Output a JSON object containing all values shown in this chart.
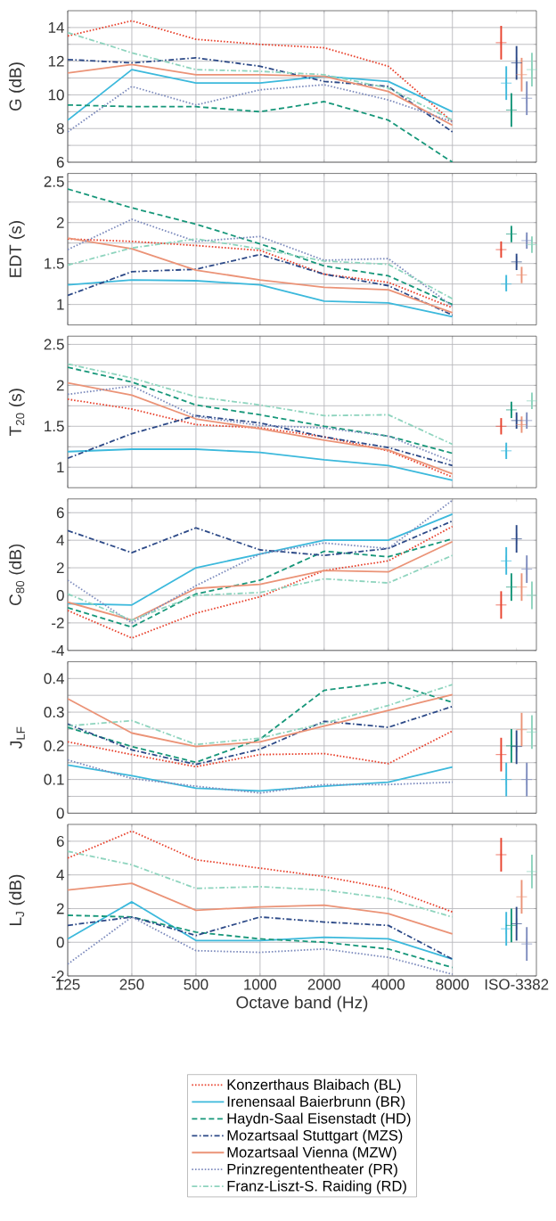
{
  "chart_data": [
    {
      "type": "line",
      "ylabel": "G (dB)",
      "categories": [
        "125",
        "250",
        "500",
        "1000",
        "2000",
        "4000",
        "8000",
        "ISO-3382"
      ],
      "ylim": [
        6,
        15
      ],
      "yticks": [
        6,
        {
          "value": 7,
          "label": null
        },
        8,
        {
          "value": 9,
          "label": null
        },
        10,
        {
          "value": 11,
          "label": null
        },
        12,
        {
          "value": 13,
          "label": null
        },
        14
      ],
      "grid": true,
      "tick_labels": "y",
      "series": [
        {
          "color": "#e8412c",
          "line_style": "dotted",
          "values": [
            13.5,
            14.4,
            13.3,
            13.0,
            12.8,
            11.7,
            8.4,
            null
          ]
        },
        {
          "color": "#3cb9dc",
          "line_style": "solid",
          "values": [
            8.5,
            11.5,
            10.7,
            10.7,
            11.1,
            10.8,
            9.0,
            null
          ]
        },
        {
          "color": "#17977a",
          "line_style": "dashed",
          "values": [
            9.4,
            9.3,
            9.3,
            9.0,
            9.6,
            8.5,
            6.0,
            null
          ]
        },
        {
          "color": "#2c4987",
          "line_style": "dashdot",
          "values": [
            12.1,
            11.9,
            12.2,
            11.7,
            10.8,
            10.5,
            7.8,
            null
          ]
        },
        {
          "color": "#eb9377",
          "line_style": "solid",
          "values": [
            11.3,
            11.8,
            11.2,
            11.2,
            11.1,
            10.2,
            8.2,
            null
          ]
        },
        {
          "color": "#7d8bbd",
          "line_style": "dotted",
          "values": [
            7.8,
            10.5,
            9.4,
            10.3,
            10.6,
            9.7,
            8.4,
            null
          ]
        },
        {
          "color": "#8ed4be",
          "line_style": "dashdot",
          "values": [
            13.7,
            12.5,
            11.5,
            11.4,
            11.2,
            10.4,
            8.5,
            null
          ]
        },
        {
          "type": "scatter",
          "color": "#e8412c",
          "marker": "cross",
          "x": [
            "ISO-3382"
          ],
          "values": [
            13.1
          ],
          "errors": [
            [
              12.1,
              14.1
            ]
          ]
        },
        {
          "type": "scatter",
          "color": "#3cb9dc",
          "marker": "cross",
          "x": [
            "ISO-3382"
          ],
          "values": [
            10.7
          ],
          "errors": [
            [
              9.7,
              11.7
            ]
          ]
        },
        {
          "type": "scatter",
          "color": "#17977a",
          "marker": "cross",
          "x": [
            "ISO-3382"
          ],
          "values": [
            9.1
          ],
          "errors": [
            [
              8.1,
              10.1
            ]
          ]
        },
        {
          "type": "scatter",
          "color": "#2c4987",
          "marker": "cross",
          "x": [
            "ISO-3382"
          ],
          "values": [
            11.9
          ],
          "errors": [
            [
              10.9,
              12.9
            ]
          ]
        },
        {
          "type": "scatter",
          "color": "#eb9377",
          "marker": "cross",
          "x": [
            "ISO-3382"
          ],
          "values": [
            11.2
          ],
          "errors": [
            [
              10.2,
              12.2
            ]
          ]
        },
        {
          "type": "scatter",
          "color": "#7d8bbd",
          "marker": "cross",
          "x": [
            "ISO-3382"
          ],
          "values": [
            9.8
          ],
          "errors": [
            [
              8.8,
              10.8
            ]
          ]
        },
        {
          "type": "scatter",
          "color": "#8ed4be",
          "marker": "cross",
          "x": [
            "ISO-3382"
          ],
          "values": [
            11.5
          ],
          "errors": [
            [
              10.5,
              12.5
            ]
          ]
        }
      ]
    },
    {
      "type": "line",
      "ylabel": "EDT (s)",
      "categories": [
        "125",
        "250",
        "500",
        "1000",
        "2000",
        "4000",
        "8000",
        "ISO-3382"
      ],
      "ylim": [
        0.75,
        2.6
      ],
      "yticks": [
        1,
        {
          "value": 1.25,
          "label": null
        },
        1.5,
        {
          "value": 1.75,
          "label": null
        },
        2,
        {
          "value": 2.25,
          "label": null
        },
        2.5
      ],
      "grid": true,
      "tick_labels": "y",
      "series": [
        {
          "color": "#e8412c",
          "line_style": "dotted",
          "values": [
            1.8,
            1.77,
            1.72,
            1.66,
            1.37,
            1.27,
            0.96,
            null
          ]
        },
        {
          "color": "#3cb9dc",
          "line_style": "solid",
          "values": [
            1.24,
            1.3,
            1.29,
            1.24,
            1.04,
            1.02,
            0.85,
            null
          ]
        },
        {
          "color": "#17977a",
          "line_style": "dashed",
          "values": [
            2.41,
            2.18,
            1.98,
            1.74,
            1.47,
            1.35,
            1.0,
            null
          ]
        },
        {
          "color": "#2c4987",
          "line_style": "dashdot",
          "values": [
            1.11,
            1.4,
            1.43,
            1.61,
            1.37,
            1.23,
            0.87,
            null
          ]
        },
        {
          "color": "#eb9377",
          "line_style": "solid",
          "values": [
            1.81,
            1.68,
            1.42,
            1.3,
            1.21,
            1.18,
            0.9,
            null
          ]
        },
        {
          "color": "#7d8bbd",
          "line_style": "dotted",
          "values": [
            1.67,
            2.04,
            1.77,
            1.83,
            1.54,
            1.56,
            0.98,
            null
          ]
        },
        {
          "color": "#8ed4be",
          "line_style": "dashdot",
          "values": [
            1.48,
            1.69,
            1.8,
            1.68,
            1.53,
            1.49,
            1.07,
            null
          ]
        },
        {
          "type": "scatter",
          "color": "#e8412c",
          "marker": "cross",
          "x": [
            "ISO-3382"
          ],
          "values": [
            1.67
          ],
          "errors": [
            [
              1.57,
              1.77
            ]
          ]
        },
        {
          "type": "scatter",
          "color": "#3cb9dc",
          "marker": "cross",
          "x": [
            "ISO-3382"
          ],
          "values": [
            1.25
          ],
          "errors": [
            [
              1.16,
              1.36
            ]
          ]
        },
        {
          "type": "scatter",
          "color": "#17977a",
          "marker": "cross",
          "x": [
            "ISO-3382"
          ],
          "values": [
            1.86
          ],
          "errors": [
            [
              1.76,
              1.96
            ]
          ]
        },
        {
          "type": "scatter",
          "color": "#2c4987",
          "marker": "cross",
          "x": [
            "ISO-3382"
          ],
          "values": [
            1.52
          ],
          "errors": [
            [
              1.42,
              1.62
            ]
          ]
        },
        {
          "type": "scatter",
          "color": "#eb9377",
          "marker": "cross",
          "x": [
            "ISO-3382"
          ],
          "values": [
            1.36
          ],
          "errors": [
            [
              1.26,
              1.46
            ]
          ]
        },
        {
          "type": "scatter",
          "color": "#7d8bbd",
          "marker": "cross",
          "x": [
            "ISO-3382"
          ],
          "values": [
            1.78
          ],
          "errors": [
            [
              1.68,
              1.88
            ]
          ]
        },
        {
          "type": "scatter",
          "color": "#8ed4be",
          "marker": "cross",
          "x": [
            "ISO-3382"
          ],
          "values": [
            1.73
          ],
          "errors": [
            [
              1.63,
              1.83
            ]
          ]
        }
      ]
    },
    {
      "type": "line",
      "ylabel": "T$_{20}$ (s)",
      "categories": [
        "125",
        "250",
        "500",
        "1000",
        "2000",
        "4000",
        "8000",
        "ISO-3382"
      ],
      "ylim": [
        0.75,
        2.6
      ],
      "yticks": [
        1,
        {
          "value": 1.25,
          "label": null
        },
        1.5,
        {
          "value": 1.75,
          "label": null
        },
        2,
        {
          "value": 2.25,
          "label": null
        },
        2.5
      ],
      "grid": true,
      "tick_labels": "y",
      "series": [
        {
          "color": "#e8412c",
          "line_style": "dotted",
          "values": [
            1.83,
            1.71,
            1.52,
            1.48,
            1.37,
            1.2,
            0.88,
            null
          ]
        },
        {
          "color": "#3cb9dc",
          "line_style": "solid",
          "values": [
            1.19,
            1.22,
            1.22,
            1.18,
            1.09,
            1.02,
            0.84,
            null
          ]
        },
        {
          "color": "#17977a",
          "line_style": "dashed",
          "values": [
            2.22,
            2.04,
            1.76,
            1.64,
            1.5,
            1.38,
            1.17,
            null
          ]
        },
        {
          "color": "#2c4987",
          "line_style": "dashdot",
          "values": [
            1.11,
            1.41,
            1.63,
            1.54,
            1.37,
            1.24,
            1.02,
            null
          ]
        },
        {
          "color": "#eb9377",
          "line_style": "solid",
          "values": [
            2.03,
            1.88,
            1.59,
            1.47,
            1.33,
            1.21,
            0.92,
            null
          ]
        },
        {
          "color": "#7d8bbd",
          "line_style": "dotted",
          "values": [
            1.89,
            1.99,
            1.62,
            1.51,
            1.48,
            1.38,
            1.07,
            null
          ]
        },
        {
          "color": "#8ed4be",
          "line_style": "dashdot",
          "values": [
            2.26,
            2.09,
            1.86,
            1.76,
            1.63,
            1.64,
            1.28,
            null
          ]
        },
        {
          "type": "scatter",
          "color": "#e8412c",
          "marker": "cross",
          "x": [
            "ISO-3382"
          ],
          "values": [
            1.5
          ],
          "errors": [
            [
              1.4,
              1.6
            ]
          ]
        },
        {
          "type": "scatter",
          "color": "#3cb9dc",
          "marker": "cross",
          "x": [
            "ISO-3382"
          ],
          "values": [
            1.2
          ],
          "errors": [
            [
              1.1,
              1.3
            ]
          ]
        },
        {
          "type": "scatter",
          "color": "#17977a",
          "marker": "cross",
          "x": [
            "ISO-3382"
          ],
          "values": [
            1.7
          ],
          "errors": [
            [
              1.6,
              1.8
            ]
          ]
        },
        {
          "type": "scatter",
          "color": "#2c4987",
          "marker": "cross",
          "x": [
            "ISO-3382"
          ],
          "values": [
            1.57
          ],
          "errors": [
            [
              1.47,
              1.67
            ]
          ]
        },
        {
          "type": "scatter",
          "color": "#eb9377",
          "marker": "cross",
          "x": [
            "ISO-3382"
          ],
          "values": [
            1.52
          ],
          "errors": [
            [
              1.42,
              1.62
            ]
          ]
        },
        {
          "type": "scatter",
          "color": "#7d8bbd",
          "marker": "cross",
          "x": [
            "ISO-3382"
          ],
          "values": [
            1.57
          ],
          "errors": [
            [
              1.47,
              1.67
            ]
          ]
        },
        {
          "type": "scatter",
          "color": "#8ed4be",
          "marker": "cross",
          "x": [
            "ISO-3382"
          ],
          "values": [
            1.81
          ],
          "errors": [
            [
              1.71,
              1.91
            ]
          ]
        }
      ]
    },
    {
      "type": "line",
      "ylabel": "C$_{80}$ (dB)",
      "categories": [
        "125",
        "250",
        "500",
        "1000",
        "2000",
        "4000",
        "8000",
        "ISO-3382"
      ],
      "ylim": [
        -4,
        7
      ],
      "yticks": [
        -4,
        -2,
        0,
        2,
        4,
        6
      ],
      "grid": true,
      "tick_labels": "y",
      "series": [
        {
          "color": "#e8412c",
          "line_style": "dotted",
          "values": [
            -1.1,
            -3.1,
            -1.3,
            -0.1,
            1.8,
            2.5,
            5.0,
            null
          ]
        },
        {
          "color": "#3cb9dc",
          "line_style": "solid",
          "values": [
            -0.6,
            -0.7,
            2.0,
            3.0,
            4.0,
            4.0,
            5.9,
            null
          ]
        },
        {
          "color": "#17977a",
          "line_style": "dashed",
          "values": [
            -0.9,
            -2.3,
            0.1,
            1.1,
            3.2,
            2.8,
            4.1,
            null
          ]
        },
        {
          "color": "#2c4987",
          "line_style": "dashdot",
          "values": [
            4.7,
            3.1,
            4.9,
            3.3,
            2.9,
            3.4,
            5.4,
            null
          ]
        },
        {
          "color": "#eb9377",
          "line_style": "solid",
          "values": [
            -0.5,
            -1.8,
            0.5,
            0.8,
            1.8,
            1.7,
            3.9,
            null
          ]
        },
        {
          "color": "#7d8bbd",
          "line_style": "dotted",
          "values": [
            1.1,
            -2.0,
            0.7,
            3.0,
            3.8,
            3.4,
            6.9,
            null
          ]
        },
        {
          "color": "#8ed4be",
          "line_style": "dashdot",
          "values": [
            0.1,
            -1.8,
            0.0,
            0.2,
            1.2,
            0.9,
            2.9,
            null
          ]
        },
        {
          "type": "scatter",
          "color": "#e8412c",
          "marker": "cross",
          "x": [
            "ISO-3382"
          ],
          "values": [
            -0.7
          ],
          "errors": [
            [
              -1.7,
              0.3
            ]
          ]
        },
        {
          "type": "scatter",
          "color": "#3cb9dc",
          "marker": "cross",
          "x": [
            "ISO-3382"
          ],
          "values": [
            2.5
          ],
          "errors": [
            [
              1.5,
              3.5
            ]
          ]
        },
        {
          "type": "scatter",
          "color": "#17977a",
          "marker": "cross",
          "x": [
            "ISO-3382"
          ],
          "values": [
            0.6
          ],
          "errors": [
            [
              -0.4,
              1.6
            ]
          ]
        },
        {
          "type": "scatter",
          "color": "#2c4987",
          "marker": "cross",
          "x": [
            "ISO-3382"
          ],
          "values": [
            4.1
          ],
          "errors": [
            [
              3.1,
              5.1
            ]
          ]
        },
        {
          "type": "scatter",
          "color": "#eb9377",
          "marker": "cross",
          "x": [
            "ISO-3382"
          ],
          "values": [
            0.6
          ],
          "errors": [
            [
              -0.4,
              1.6
            ]
          ]
        },
        {
          "type": "scatter",
          "color": "#7d8bbd",
          "marker": "cross",
          "x": [
            "ISO-3382"
          ],
          "values": [
            1.9
          ],
          "errors": [
            [
              0.9,
              2.9
            ]
          ]
        },
        {
          "type": "scatter",
          "color": "#8ed4be",
          "marker": "cross",
          "x": [
            "ISO-3382"
          ],
          "values": [
            0.0
          ],
          "errors": [
            [
              -1.0,
              1.0
            ]
          ]
        }
      ]
    },
    {
      "type": "line",
      "ylabel": "J$_{LF}$",
      "categories": [
        "125",
        "250",
        "500",
        "1000",
        "2000",
        "4000",
        "8000",
        "ISO-3382"
      ],
      "ylim": [
        0,
        0.45
      ],
      "yticks": [
        0,
        {
          "value": 0.05,
          "label": null
        },
        0.1,
        {
          "value": 0.15,
          "label": null
        },
        0.2,
        {
          "value": 0.25,
          "label": null
        },
        0.3,
        {
          "value": 0.35,
          "label": null
        },
        0.4
      ],
      "grid": true,
      "tick_labels": "y",
      "series": [
        {
          "color": "#e8412c",
          "line_style": "dotted",
          "values": [
            0.212,
            0.174,
            0.138,
            0.174,
            0.177,
            0.147,
            0.244,
            null
          ]
        },
        {
          "color": "#3cb9dc",
          "line_style": "solid",
          "values": [
            0.143,
            0.111,
            0.074,
            0.066,
            0.08,
            0.092,
            0.137,
            null
          ]
        },
        {
          "color": "#17977a",
          "line_style": "dashed",
          "values": [
            0.255,
            0.198,
            0.151,
            0.22,
            0.365,
            0.389,
            0.329,
            null
          ]
        },
        {
          "color": "#2c4987",
          "line_style": "dashdot",
          "values": [
            0.265,
            0.188,
            0.145,
            0.19,
            0.273,
            0.255,
            0.317,
            null
          ]
        },
        {
          "color": "#eb9377",
          "line_style": "solid",
          "values": [
            0.34,
            0.238,
            0.198,
            0.212,
            0.259,
            0.305,
            0.352,
            null
          ]
        },
        {
          "color": "#7d8bbd",
          "line_style": "dotted",
          "values": [
            0.158,
            0.103,
            0.08,
            0.06,
            0.085,
            0.085,
            0.092,
            null
          ]
        },
        {
          "color": "#8ed4be",
          "line_style": "dashdot",
          "values": [
            0.259,
            0.275,
            0.204,
            0.223,
            0.267,
            0.32,
            0.382,
            null
          ]
        },
        {
          "type": "scatter",
          "color": "#e8412c",
          "marker": "cross",
          "x": [
            "ISO-3382"
          ],
          "values": [
            0.174
          ],
          "errors": [
            [
              0.124,
              0.224
            ]
          ]
        },
        {
          "type": "scatter",
          "color": "#3cb9dc",
          "marker": "cross",
          "x": [
            "ISO-3382"
          ],
          "values": [
            0.1
          ],
          "errors": [
            [
              0.05,
              0.15
            ]
          ]
        },
        {
          "type": "scatter",
          "color": "#17977a",
          "marker": "cross",
          "x": [
            "ISO-3382"
          ],
          "values": [
            0.2
          ],
          "errors": [
            [
              0.15,
              0.25
            ]
          ]
        },
        {
          "type": "scatter",
          "color": "#2c4987",
          "marker": "cross",
          "x": [
            "ISO-3382"
          ],
          "values": [
            0.198
          ],
          "errors": [
            [
              0.146,
              0.246
            ]
          ]
        },
        {
          "type": "scatter",
          "color": "#eb9377",
          "marker": "cross",
          "x": [
            "ISO-3382"
          ],
          "values": [
            0.248
          ],
          "errors": [
            [
              0.198,
              0.298
            ]
          ]
        },
        {
          "type": "scatter",
          "color": "#7d8bbd",
          "marker": "cross",
          "x": [
            "ISO-3382"
          ],
          "values": [
            0.1
          ],
          "errors": [
            [
              0.05,
              0.15
            ]
          ]
        },
        {
          "type": "scatter",
          "color": "#8ed4be",
          "marker": "cross",
          "x": [
            "ISO-3382"
          ],
          "values": [
            0.241
          ],
          "errors": [
            [
              0.191,
              0.291
            ]
          ]
        }
      ]
    },
    {
      "type": "line",
      "ylabel": "L$_{J}$ (dB)",
      "xlabel": "Octave band (Hz)",
      "categories": [
        "125",
        "250",
        "500",
        "1000",
        "2000",
        "4000",
        "8000",
        "ISO-3382"
      ],
      "ylim": [
        -2,
        7
      ],
      "yticks": [
        -2,
        0,
        2,
        4,
        6
      ],
      "grid": true,
      "legend": "bottom",
      "series": [
        {
          "name": "Konzerthaus Blaibach (BL)",
          "color": "#e8412c",
          "line_style": "dotted",
          "values": [
            5.0,
            6.6,
            4.9,
            4.4,
            3.9,
            3.2,
            1.8,
            null
          ]
        },
        {
          "name": "Irenensaal Baierbrunn (BR)",
          "color": "#3cb9dc",
          "line_style": "solid",
          "values": [
            0.2,
            2.4,
            0.1,
            0.1,
            0.3,
            0.2,
            -1.0,
            null
          ]
        },
        {
          "name": "Haydn-Saal Eisenstadt (HD)",
          "color": "#17977a",
          "line_style": "dashed",
          "values": [
            1.6,
            1.5,
            0.6,
            0.2,
            0.0,
            -0.4,
            -1.5,
            null
          ]
        },
        {
          "name": "Mozartsaal Stuttgart (MZS)",
          "color": "#2c4987",
          "line_style": "dashdot",
          "values": [
            1.0,
            1.5,
            0.4,
            1.5,
            1.2,
            1.0,
            -1.0,
            null
          ]
        },
        {
          "name": "Mozartsaal Vienna (MZW)",
          "color": "#eb9377",
          "line_style": "solid",
          "values": [
            3.1,
            3.5,
            1.9,
            2.1,
            2.2,
            1.7,
            0.5,
            null
          ]
        },
        {
          "name": "Prinzregententheater (PR)",
          "color": "#7d8bbd",
          "line_style": "dotted",
          "values": [
            -1.3,
            1.5,
            -0.5,
            -0.6,
            -0.4,
            -0.9,
            -1.9,
            null
          ]
        },
        {
          "name": "Franz-Liszt-S. Raiding (RD)",
          "color": "#8ed4be",
          "line_style": "dashdot",
          "values": [
            5.4,
            4.6,
            3.2,
            3.3,
            3.1,
            2.6,
            1.5,
            null
          ]
        },
        {
          "type": "scatter",
          "color": "#e8412c",
          "marker": "cross",
          "x": [
            "ISO-3382"
          ],
          "values": [
            5.2
          ],
          "errors": [
            [
              4.2,
              6.2
            ]
          ]
        },
        {
          "type": "scatter",
          "color": "#3cb9dc",
          "marker": "cross",
          "x": [
            "ISO-3382"
          ],
          "values": [
            0.8
          ],
          "errors": [
            [
              -0.2,
              1.8
            ]
          ]
        },
        {
          "type": "scatter",
          "color": "#17977a",
          "marker": "cross",
          "x": [
            "ISO-3382"
          ],
          "values": [
            1.0
          ],
          "errors": [
            [
              0.0,
              2.0
            ]
          ]
        },
        {
          "type": "scatter",
          "color": "#2c4987",
          "marker": "cross",
          "x": [
            "ISO-3382"
          ],
          "values": [
            1.1
          ],
          "errors": [
            [
              0.1,
              2.1
            ]
          ]
        },
        {
          "type": "scatter",
          "color": "#eb9377",
          "marker": "cross",
          "x": [
            "ISO-3382"
          ],
          "values": [
            2.7
          ],
          "errors": [
            [
              1.7,
              3.7
            ]
          ]
        },
        {
          "type": "scatter",
          "color": "#7d8bbd",
          "marker": "cross",
          "x": [
            "ISO-3382"
          ],
          "values": [
            -0.1
          ],
          "errors": [
            [
              -1.1,
              0.9
            ]
          ]
        },
        {
          "type": "scatter",
          "color": "#8ed4be",
          "marker": "cross",
          "x": [
            "ISO-3382"
          ],
          "values": [
            4.2
          ],
          "errors": [
            [
              3.2,
              5.2
            ]
          ]
        }
      ]
    }
  ]
}
